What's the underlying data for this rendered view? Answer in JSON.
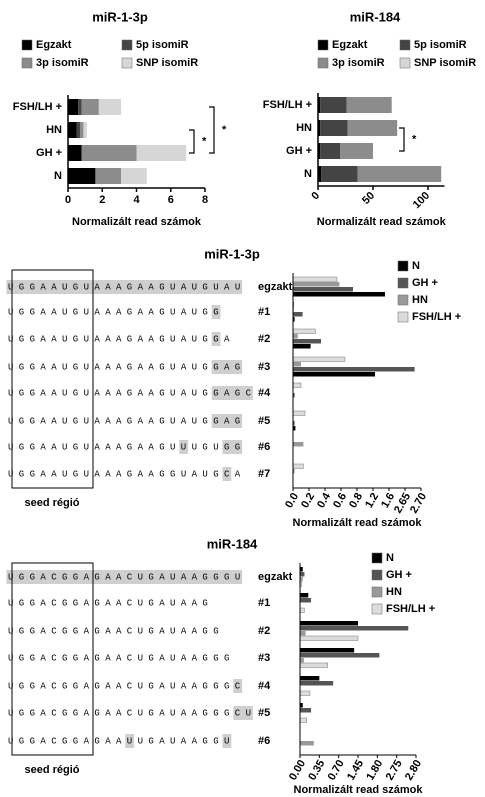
{
  "chart_data": [
    {
      "type": "stacked_barh",
      "title": "miR-1-3p",
      "categories": [
        "FSH/LH +",
        "HN",
        "GH +",
        "N"
      ],
      "series": [
        {
          "name": "Egzakt",
          "color": "#000000",
          "values": [
            0.6,
            0.5,
            0.8,
            1.6
          ]
        },
        {
          "name": "5p isomiR",
          "color": "#444444",
          "values": [
            0.2,
            0.2,
            0.0,
            0.0
          ]
        },
        {
          "name": "3p isomiR",
          "color": "#8c8c8c",
          "values": [
            1.0,
            0.2,
            3.2,
            1.5
          ]
        },
        {
          "name": "SNP isomiR",
          "color": "#d6d6d6",
          "values": [
            1.3,
            0.2,
            2.9,
            1.5
          ]
        }
      ],
      "xlim": [
        0,
        8
      ],
      "xticks": [
        0,
        2,
        4,
        6,
        8
      ],
      "xlabel": "Normalizált read számok",
      "annotations": [
        {
          "text": "*",
          "categories": [
            "HN",
            "GH +"
          ]
        },
        {
          "text": "*",
          "categories": [
            "FSH/LH +",
            "GH +"
          ]
        }
      ]
    },
    {
      "type": "stacked_barh",
      "title": "miR-184",
      "categories": [
        "FSH/LH +",
        "HN",
        "GH +",
        "N"
      ],
      "series": [
        {
          "name": "Egzakt",
          "color": "#000000",
          "values": [
            2,
            2,
            2,
            3
          ]
        },
        {
          "name": "5p isomiR",
          "color": "#444444",
          "values": [
            24,
            25,
            18,
            33
          ]
        },
        {
          "name": "3p isomiR",
          "color": "#8c8c8c",
          "values": [
            41,
            45,
            30,
            76
          ]
        },
        {
          "name": "SNP isomiR",
          "color": "#d6d6d6",
          "values": [
            0,
            0,
            0,
            0
          ]
        }
      ],
      "xlim": [
        0,
        115
      ],
      "xticks": [
        0,
        50,
        100
      ],
      "xlabel": "Normalizált read számok",
      "annotations": [
        {
          "text": "*",
          "categories": [
            "HN",
            "GH +"
          ]
        }
      ]
    },
    {
      "type": "sequence_barh",
      "title": "miR-1-3p",
      "seed_label": "seed régió",
      "categories": [
        "egzakt",
        "#1",
        "#2",
        "#3",
        "#4",
        "#5",
        "#6",
        "#7"
      ],
      "sequences": [
        [
          {
            "text": "UGGAAUGUAAAGAAGUAUGUAU",
            "highlight": true
          }
        ],
        [
          {
            "text": "UGGAAUGUAAAGAAGUAUG",
            "highlight": false
          },
          {
            "text": "G",
            "highlight": true
          }
        ],
        [
          {
            "text": "UGGAAUGUAAAGAAGUAUG",
            "highlight": false
          },
          {
            "text": "G",
            "highlight": true
          },
          {
            "text": "A",
            "highlight": false
          }
        ],
        [
          {
            "text": "UGGAAUGUAAAGAAGUAUG",
            "highlight": false
          },
          {
            "text": "GAG",
            "highlight": true
          }
        ],
        [
          {
            "text": "UGGAAUGUAAAGAAGUAUG",
            "highlight": false
          },
          {
            "text": "GAGC",
            "highlight": true
          }
        ],
        [
          {
            "text": "UGGAAUGUAAAGAAGUAUG",
            "highlight": false
          },
          {
            "text": "GAG",
            "highlight": true
          }
        ],
        [
          {
            "text": "UGGAAUGUAAAGAAGU",
            "highlight": false
          },
          {
            "text": "U",
            "highlight": true
          },
          {
            "text": "UGU",
            "highlight": false
          },
          {
            "text": "GG",
            "highlight": true
          }
        ],
        [
          {
            "text": "UGGAAUGUAAAGAAGGUAUG",
            "highlight": false
          },
          {
            "text": "C",
            "highlight": true
          },
          {
            "text": "A",
            "highlight": false
          }
        ]
      ],
      "series_order": "reverse",
      "series": [
        {
          "name": "N",
          "color": "#000000",
          "values": [
            1.5,
            0.02,
            0.22,
            1.25,
            0,
            0.03,
            0,
            0
          ]
        },
        {
          "name": "GH +",
          "color": "#555555",
          "values": [
            0.75,
            0.12,
            0.35,
            2.68,
            0.02,
            0.02,
            0,
            0
          ]
        },
        {
          "name": "HN",
          "color": "#999999",
          "values": [
            0.58,
            0.01,
            0.06,
            0.1,
            0,
            0,
            0.13,
            0.02
          ]
        },
        {
          "name": "FSH/LH +",
          "color": "#dcdcdc",
          "values": [
            0.55,
            0.01,
            0.28,
            0.65,
            0.1,
            0.15,
            0,
            0.13
          ]
        }
      ],
      "xlim": [
        0,
        2.7
      ],
      "xticks": [
        {
          "value": 0,
          "label": "0.0"
        },
        0.2,
        0.4,
        0.6,
        0.8,
        1.2,
        1.6,
        2.65,
        {
          "value": 2.7,
          "label": "2.70"
        }
      ],
      "xlabel": "Normalizált read számok"
    },
    {
      "type": "sequence_barh",
      "title": "miR-184",
      "seed_label": "seed régió",
      "categories": [
        "egzakt",
        "#1",
        "#2",
        "#3",
        "#4",
        "#5",
        "#6"
      ],
      "sequences": [
        [
          {
            "text": "UGGACGGAGAACUGAUAAGGGU",
            "highlight": true
          }
        ],
        [
          {
            "text": "UGGACGGAGAACUGAUAAG",
            "highlight": false
          }
        ],
        [
          {
            "text": "UGGACGGAGAACUGAUAAGG",
            "highlight": false
          }
        ],
        [
          {
            "text": "UGGACGGAGAACUGAUAAGGG",
            "highlight": false
          }
        ],
        [
          {
            "text": "UGGACGGAGAACUGAUAAGGG",
            "highlight": false
          },
          {
            "text": "C",
            "highlight": true
          }
        ],
        [
          {
            "text": "UGGACGGAGAACUGAUAAGGG",
            "highlight": false
          },
          {
            "text": "CU",
            "highlight": true
          }
        ],
        [
          {
            "text": "UGGACGGAGAA",
            "highlight": false
          },
          {
            "text": "U",
            "highlight": true
          },
          {
            "text": "UGAUAAGG",
            "highlight": false
          },
          {
            "text": "U",
            "highlight": true
          }
        ]
      ],
      "series_order": "forward",
      "series": [
        {
          "name": "N",
          "color": "#000000",
          "values": [
            0.05,
            0.15,
            1.45,
            1.3,
            0.35,
            0.05,
            0
          ]
        },
        {
          "name": "GH +",
          "color": "#555555",
          "values": [
            0.08,
            0.2,
            2.78,
            1.9,
            0.6,
            0.2,
            0
          ]
        },
        {
          "name": "HN",
          "color": "#999999",
          "values": [
            0.05,
            0,
            0.1,
            0.07,
            0,
            0,
            0.25
          ]
        },
        {
          "name": "FSH/LH +",
          "color": "#dcdcdc",
          "values": [
            0.03,
            0.08,
            1.45,
            0.5,
            0.18,
            0.12,
            0
          ]
        }
      ],
      "xlim": [
        0,
        2.8
      ],
      "xticks": [
        {
          "value": 0,
          "label": "0.00"
        },
        0.35,
        {
          "value": 0.7,
          "label": "0.70"
        },
        1.45,
        {
          "value": 1.8,
          "label": "1.80"
        },
        2.75,
        {
          "value": 2.8,
          "label": "2.80"
        }
      ],
      "xlabel": "Normalizált read számok"
    }
  ]
}
